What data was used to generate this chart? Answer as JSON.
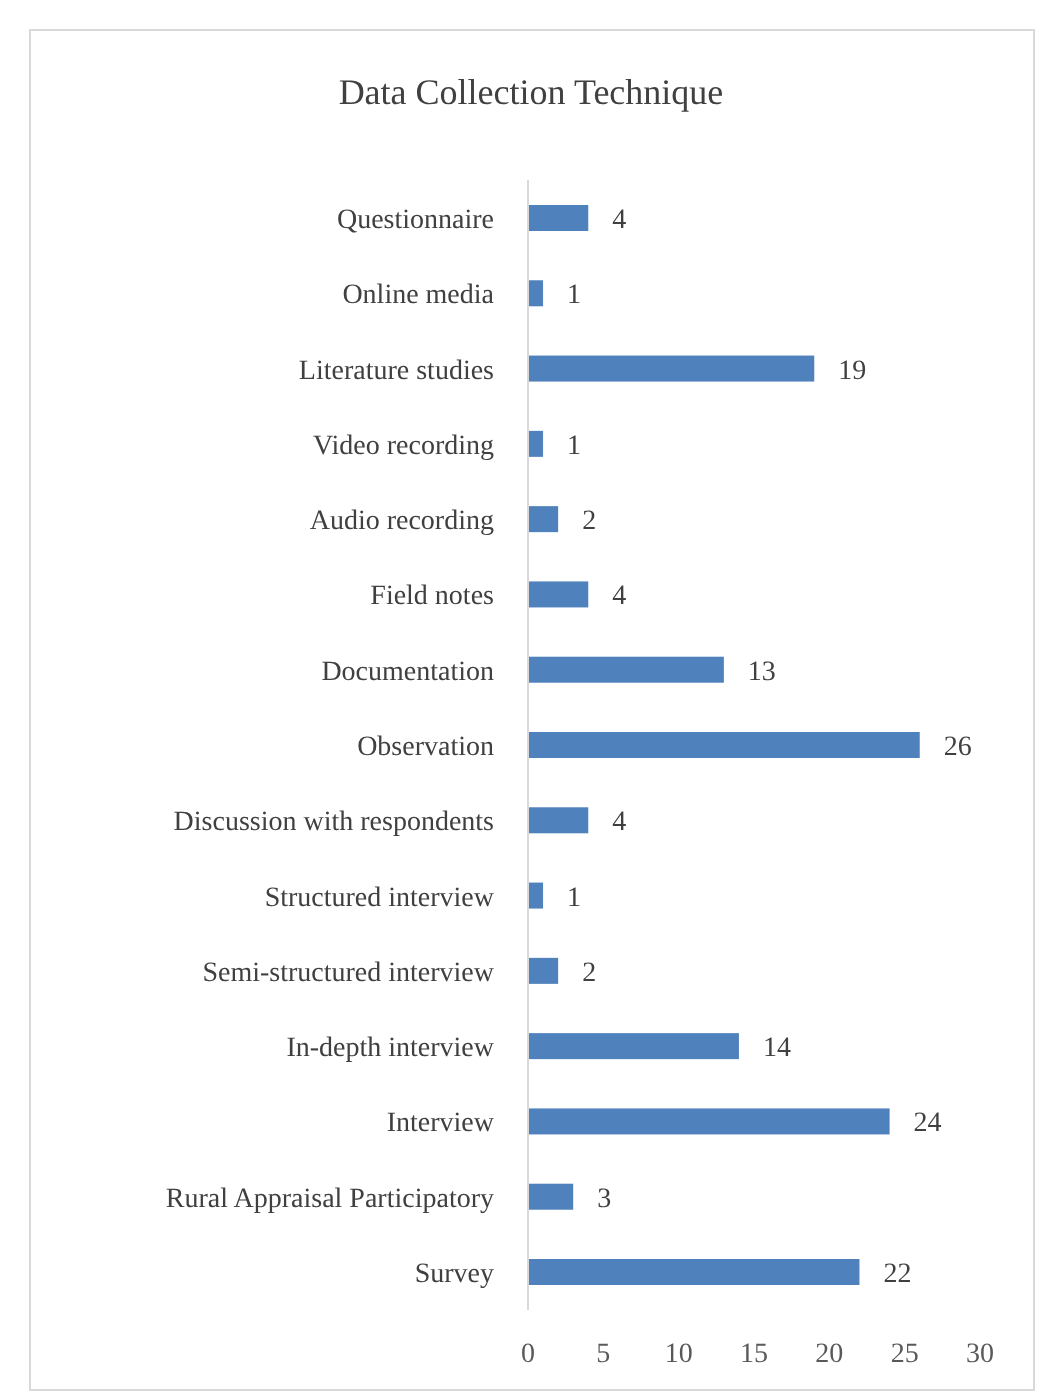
{
  "chart_data": {
    "type": "bar",
    "orientation": "horizontal",
    "title": "Data Collection Technique",
    "categories": [
      "Questionnaire",
      "Online media",
      "Literature studies",
      "Video recording",
      "Audio recording",
      "Field notes",
      "Documentation",
      "Observation",
      "Discussion with respondents",
      "Structured interview",
      "Semi-structured interview",
      "In-depth interview",
      "Interview",
      "Rural Appraisal Participatory",
      "Survey"
    ],
    "values": [
      4,
      1,
      19,
      1,
      2,
      4,
      13,
      26,
      4,
      1,
      2,
      14,
      24,
      3,
      22
    ],
    "color": "#4f81bd",
    "xlim": [
      0,
      30
    ],
    "xticks": [
      0,
      5,
      10,
      15,
      20,
      25,
      30
    ],
    "grid": false,
    "data_labels": true
  }
}
